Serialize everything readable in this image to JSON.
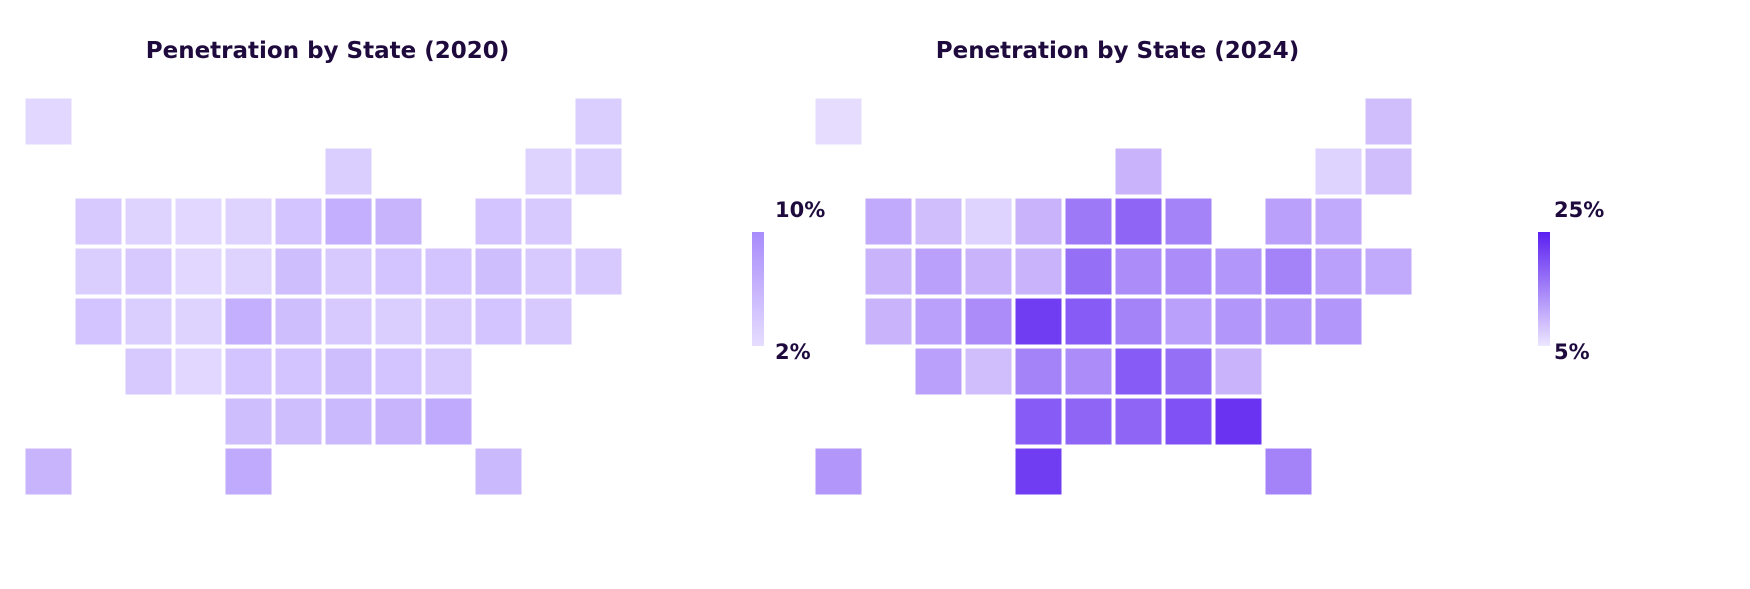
{
  "chart_data": [
    {
      "type": "choropleth",
      "title": "Penetration by State (2020)",
      "legend": {
        "min_label": "2%",
        "max_label": "10%",
        "min": 2,
        "max": 10,
        "min_color": "#e6ddff",
        "max_color": "#a88bfb",
        "placement": "right"
      },
      "values": {
        "WA": 4,
        "OR": 3.5,
        "CA": 4.5,
        "NV": 4,
        "ID": 3,
        "MT": 2.5,
        "WY": 2.5,
        "UT": 3.5,
        "AZ": 4,
        "CO": 3,
        "NM": 2.5,
        "ND": 3,
        "SD": 3,
        "NE": 6.5,
        "KS": 4.5,
        "OK": 5,
        "TX": 7,
        "MN": 4.5,
        "IA": 5,
        "MO": 5,
        "AR": 4.5,
        "LA": 5,
        "WI": 3.5,
        "IL": 6.5,
        "MI": 6,
        "IN": 4,
        "OH": 4.5,
        "KY": 4,
        "TN": 5,
        "MS": 5.5,
        "AL": 6,
        "GA": 7,
        "FL": 5.5,
        "SC": 4,
        "NC": 4.5,
        "VA": 4,
        "WV": 3.5,
        "PA": 4.5,
        "NY": 4.5,
        "ME": 3.5,
        "VT": 3,
        "NH": 3.5,
        "MA": 4,
        "RI": 4,
        "CT": 4,
        "NJ": 5,
        "DE": 4,
        "MD": 4.5,
        "AK": 2.5,
        "HI": 6
      }
    },
    {
      "type": "choropleth",
      "title": "Penetration by State (2024)",
      "legend": {
        "min_label": "5%",
        "max_label": "25%",
        "min": 5,
        "max": 25,
        "min_color": "#ede6ff",
        "max_color": "#5b1ff0",
        "placement": "right"
      },
      "values": {
        "WA": 11,
        "OR": 10,
        "CA": 10,
        "NV": 12,
        "ID": 9,
        "MT": 7,
        "WY": 10,
        "UT": 12,
        "AZ": 12,
        "CO": 14,
        "NM": 9,
        "ND": 10,
        "SD": 10,
        "NE": 22,
        "KS": 15,
        "OK": 19,
        "TX": 22,
        "MN": 16,
        "IA": 17,
        "MO": 19,
        "AR": 14,
        "LA": 18,
        "WI": 10,
        "IL": 18,
        "MI": 15,
        "IN": 14,
        "OH": 14,
        "KY": 15,
        "TN": 19,
        "MS": 18,
        "AL": 20,
        "GA": 23,
        "FL": 15,
        "SC": 10,
        "NC": 17,
        "VA": 13,
        "WV": 12,
        "PA": 13,
        "NY": 12,
        "ME": 9,
        "VT": 7,
        "NH": 9,
        "MA": 11,
        "RI": 11,
        "CT": 12,
        "NJ": 15,
        "DE": 13,
        "MD": 13,
        "AK": 6,
        "HI": 13
      }
    }
  ],
  "colors": {
    "title": "#1e0a3c",
    "border": "#ffffff"
  }
}
